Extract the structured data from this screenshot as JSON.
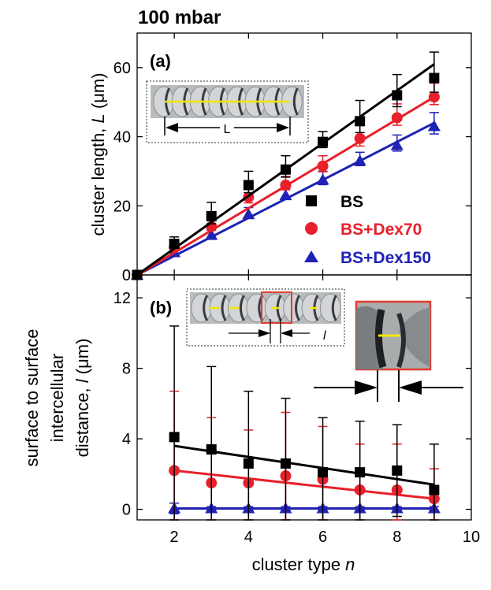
{
  "figure": {
    "title": "100 mbar",
    "x_label_text": "cluster type ",
    "x_label_var": "n"
  },
  "legend": [
    {
      "name": "BS",
      "color": "#000000",
      "marker": "square"
    },
    {
      "name": "BS+Dex70",
      "color": "#e8202a",
      "marker": "circle"
    },
    {
      "name": "BS+Dex150",
      "color": "#1f22b4",
      "marker": "triangle"
    }
  ],
  "inset": {
    "length_marker": "L",
    "distance_marker": "l"
  },
  "colors": {
    "inset_bg": "#b9bcbe",
    "inset_border": "#6f7773",
    "highlight": "#f2e600",
    "zoom_frame": "#e43b2f"
  },
  "chart_data": [
    {
      "type": "scatter",
      "panel": "(a)",
      "ylabel_text": "cluster length, ",
      "ylabel_var": "L",
      "ylabel_unit": " (μm)",
      "xlim": [
        1,
        10
      ],
      "ylim": [
        0,
        70
      ],
      "yticks": [
        0,
        20,
        40,
        60
      ],
      "series": [
        {
          "name": "BS",
          "color": "#000000",
          "marker": "square",
          "x": [
            1,
            2,
            3,
            4,
            5,
            6,
            7,
            8,
            9
          ],
          "y": [
            0,
            9,
            17,
            26,
            30.5,
            38.5,
            44.5,
            52,
            57
          ],
          "err": [
            0,
            2,
            4,
            4,
            4,
            3,
            6,
            6,
            7.5
          ],
          "fit": [
            [
              1,
              0
            ],
            [
              9,
              61
            ]
          ]
        },
        {
          "name": "BS+Dex70",
          "color": "#e8202a",
          "marker": "circle",
          "x": [
            1,
            2,
            3,
            4,
            5,
            6,
            7,
            8,
            9
          ],
          "y": [
            0,
            8,
            14,
            22.5,
            26,
            31.5,
            39.5,
            45.5,
            51.5
          ],
          "err": [
            0,
            1.5,
            2,
            3,
            2.5,
            3,
            4,
            4,
            4
          ],
          "fit": [
            [
              1,
              0
            ],
            [
              9,
              51.5
            ]
          ]
        },
        {
          "name": "BS+Dex150",
          "color": "#1f22b4",
          "marker": "triangle",
          "x": [
            1,
            2,
            3,
            4,
            5,
            6,
            7,
            8,
            9
          ],
          "y": [
            0,
            6.5,
            11.5,
            17.5,
            23,
            27.5,
            33,
            37.5,
            43
          ],
          "err": [
            0,
            1,
            1.5,
            2,
            2,
            2.5,
            2.5,
            3,
            4
          ],
          "fit": [
            [
              1,
              0
            ],
            [
              9,
              44
            ]
          ]
        }
      ]
    },
    {
      "type": "scatter",
      "panel": "(b)",
      "ylabel_line1": "surface to surface",
      "ylabel_line2": "intercellular",
      "ylabel_line3_text": "distance, ",
      "ylabel_line3_var": "l",
      "ylabel_line3_unit": " (μm)",
      "xlim": [
        1,
        10
      ],
      "ylim": [
        -0.6,
        13.3
      ],
      "xticks": [
        2,
        4,
        6,
        8,
        10
      ],
      "yticks": [
        0,
        4,
        8,
        12
      ],
      "series": [
        {
          "name": "BS",
          "color": "#000000",
          "marker": "square",
          "x": [
            2,
            3,
            4,
            5,
            6,
            7,
            8,
            9
          ],
          "y": [
            4.1,
            3.4,
            2.6,
            2.6,
            2.1,
            2.1,
            2.2,
            1.1
          ],
          "err": [
            6.3,
            4.7,
            4.1,
            3.7,
            3.1,
            2.9,
            2.6,
            2.6
          ],
          "fit": [
            [
              2,
              3.6
            ],
            [
              9,
              1.4
            ]
          ]
        },
        {
          "name": "BS+Dex70",
          "color": "#e8202a",
          "marker": "circle",
          "x": [
            2,
            3,
            4,
            5,
            6,
            7,
            8,
            9
          ],
          "y": [
            2.2,
            1.5,
            1.5,
            1.9,
            1.7,
            1.1,
            1.1,
            0.6
          ],
          "err": [
            4.5,
            3.7,
            3.0,
            3.6,
            3.0,
            2.6,
            2.6,
            1.7
          ],
          "fit": [
            [
              2,
              2.2
            ],
            [
              9,
              0.6
            ]
          ]
        },
        {
          "name": "BS+Dex150",
          "color": "#1f22b4",
          "marker": "triangle",
          "x": [
            2,
            3,
            4,
            5,
            6,
            7,
            8,
            9
          ],
          "y": [
            0.05,
            0.05,
            0.05,
            0.05,
            0.05,
            0.05,
            0.05,
            0.05
          ],
          "err": [
            0.3,
            0.1,
            0.1,
            0.1,
            0.1,
            0.1,
            0.1,
            0.1
          ],
          "fit": [
            [
              2,
              0.05
            ],
            [
              9,
              0.05
            ]
          ]
        }
      ]
    }
  ]
}
